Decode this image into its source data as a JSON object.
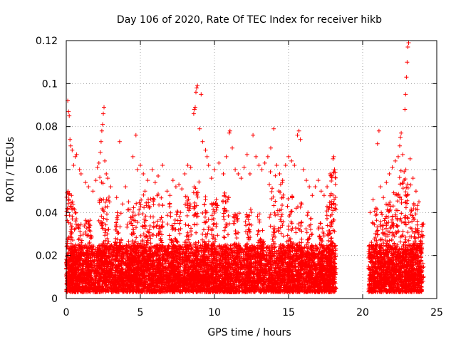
{
  "chart_data": {
    "type": "scatter",
    "title": "Day 106 of 2020, Rate Of TEC Index for receiver hikb",
    "xlabel": "GPS time / hours",
    "ylabel": "ROTI / TECUs",
    "xlim": [
      0,
      25
    ],
    "ylim": [
      0,
      0.12
    ],
    "x_ticks": [
      "0",
      "5",
      "10",
      "15",
      "20",
      "25"
    ],
    "y_ticks": [
      "0",
      "0.02",
      "0.04",
      "0.06",
      "0.08",
      "0.1",
      "0.12"
    ],
    "grid": true,
    "marker": "+",
    "color": "#ff0000",
    "data_gap_hours": [
      18.2,
      20.4
    ],
    "series": [
      {
        "points": [
          [
            0.1,
            0.092
          ],
          [
            0.15,
            0.087
          ],
          [
            0.2,
            0.085
          ],
          [
            0.25,
            0.074
          ],
          [
            0.3,
            0.071
          ],
          [
            0.4,
            0.069
          ],
          [
            0.5,
            0.062
          ],
          [
            0.6,
            0.066
          ],
          [
            0.7,
            0.067
          ],
          [
            0.9,
            0.06
          ],
          [
            1.0,
            0.058
          ],
          [
            1.3,
            0.054
          ],
          [
            1.5,
            0.052
          ],
          [
            1.8,
            0.05
          ],
          [
            2.0,
            0.055
          ],
          [
            2.1,
            0.061
          ],
          [
            2.2,
            0.063
          ],
          [
            2.3,
            0.068
          ],
          [
            2.35,
            0.073
          ],
          [
            2.4,
            0.078
          ],
          [
            2.45,
            0.081
          ],
          [
            2.5,
            0.086
          ],
          [
            2.55,
            0.089
          ],
          [
            2.6,
            0.064
          ],
          [
            2.7,
            0.058
          ],
          [
            2.8,
            0.056
          ],
          [
            3.0,
            0.052
          ],
          [
            3.4,
            0.047
          ],
          [
            3.6,
            0.073
          ],
          [
            3.8,
            0.044
          ],
          [
            4.0,
            0.052
          ],
          [
            4.2,
            0.045
          ],
          [
            4.5,
            0.066
          ],
          [
            4.7,
            0.076
          ],
          [
            4.8,
            0.06
          ],
          [
            5.0,
            0.062
          ],
          [
            5.2,
            0.058
          ],
          [
            5.5,
            0.055
          ],
          [
            5.8,
            0.06
          ],
          [
            6.0,
            0.054
          ],
          [
            6.2,
            0.057
          ],
          [
            6.5,
            0.062
          ],
          [
            6.8,
            0.05
          ],
          [
            7.0,
            0.048
          ],
          [
            7.2,
            0.055
          ],
          [
            7.4,
            0.052
          ],
          [
            7.6,
            0.053
          ],
          [
            7.8,
            0.051
          ],
          [
            8.0,
            0.058
          ],
          [
            8.2,
            0.062
          ],
          [
            8.4,
            0.061
          ],
          [
            8.6,
            0.086
          ],
          [
            8.65,
            0.088
          ],
          [
            8.7,
            0.089
          ],
          [
            8.75,
            0.096
          ],
          [
            8.8,
            0.098
          ],
          [
            8.85,
            0.099
          ],
          [
            9.0,
            0.079
          ],
          [
            9.1,
            0.095
          ],
          [
            9.2,
            0.073
          ],
          [
            9.4,
            0.069
          ],
          [
            9.5,
            0.066
          ],
          [
            9.6,
            0.062
          ],
          [
            9.8,
            0.056
          ],
          [
            10.0,
            0.06
          ],
          [
            10.3,
            0.063
          ],
          [
            10.6,
            0.058
          ],
          [
            10.8,
            0.066
          ],
          [
            11.0,
            0.077
          ],
          [
            11.05,
            0.078
          ],
          [
            11.2,
            0.07
          ],
          [
            11.4,
            0.06
          ],
          [
            11.6,
            0.058
          ],
          [
            11.8,
            0.056
          ],
          [
            12.0,
            0.061
          ],
          [
            12.2,
            0.067
          ],
          [
            12.4,
            0.058
          ],
          [
            12.6,
            0.076
          ],
          [
            12.8,
            0.066
          ],
          [
            13.0,
            0.062
          ],
          [
            13.2,
            0.06
          ],
          [
            13.4,
            0.063
          ],
          [
            13.6,
            0.066
          ],
          [
            13.8,
            0.07
          ],
          [
            14.0,
            0.079
          ],
          [
            14.2,
            0.062
          ],
          [
            14.4,
            0.058
          ],
          [
            14.6,
            0.055
          ],
          [
            14.8,
            0.062
          ],
          [
            15.0,
            0.066
          ],
          [
            15.2,
            0.064
          ],
          [
            15.4,
            0.062
          ],
          [
            15.6,
            0.076
          ],
          [
            15.7,
            0.078
          ],
          [
            15.8,
            0.074
          ],
          [
            16.0,
            0.06
          ],
          [
            16.2,
            0.055
          ],
          [
            16.4,
            0.052
          ],
          [
            16.6,
            0.048
          ],
          [
            16.8,
            0.052
          ],
          [
            17.0,
            0.055
          ],
          [
            17.2,
            0.05
          ],
          [
            17.4,
            0.048
          ],
          [
            17.6,
            0.052
          ],
          [
            17.8,
            0.058
          ],
          [
            18.0,
            0.065
          ],
          [
            18.05,
            0.066
          ],
          [
            18.1,
            0.06
          ],
          [
            20.5,
            0.04
          ],
          [
            20.7,
            0.046
          ],
          [
            20.9,
            0.042
          ],
          [
            21.0,
            0.072
          ],
          [
            21.1,
            0.078
          ],
          [
            21.2,
            0.052
          ],
          [
            21.4,
            0.047
          ],
          [
            21.6,
            0.054
          ],
          [
            21.8,
            0.058
          ],
          [
            22.0,
            0.061
          ],
          [
            22.2,
            0.064
          ],
          [
            22.4,
            0.066
          ],
          [
            22.5,
            0.071
          ],
          [
            22.55,
            0.075
          ],
          [
            22.6,
            0.077
          ],
          [
            22.7,
            0.067
          ],
          [
            22.8,
            0.059
          ],
          [
            22.85,
            0.088
          ],
          [
            22.9,
            0.095
          ],
          [
            22.95,
            0.103
          ],
          [
            23.0,
            0.11
          ],
          [
            23.05,
            0.117
          ],
          [
            23.1,
            0.119
          ],
          [
            23.2,
            0.065
          ],
          [
            23.4,
            0.056
          ],
          [
            23.6,
            0.05
          ],
          [
            23.8,
            0.045
          ]
        ]
      }
    ],
    "dense_band": {
      "segments": [
        [
          0,
          18.2
        ],
        [
          20.4,
          24
        ]
      ],
      "base_range": [
        0.003,
        0.025
      ],
      "bursts": [
        [
          0.2,
          0.05
        ],
        [
          0.5,
          0.045
        ],
        [
          1.0,
          0.035
        ],
        [
          1.5,
          0.038
        ],
        [
          2.4,
          0.06
        ],
        [
          2.7,
          0.05
        ],
        [
          3.5,
          0.04
        ],
        [
          4.3,
          0.042
        ],
        [
          4.7,
          0.045
        ],
        [
          5.2,
          0.05
        ],
        [
          5.7,
          0.048
        ],
        [
          6.3,
          0.05
        ],
        [
          7.0,
          0.045
        ],
        [
          7.5,
          0.042
        ],
        [
          8.2,
          0.05
        ],
        [
          8.8,
          0.055
        ],
        [
          9.4,
          0.05
        ],
        [
          10.0,
          0.048
        ],
        [
          10.8,
          0.05
        ],
        [
          11.5,
          0.04
        ],
        [
          12.3,
          0.042
        ],
        [
          13.1,
          0.04
        ],
        [
          13.9,
          0.06
        ],
        [
          14.5,
          0.055
        ],
        [
          15.1,
          0.05
        ],
        [
          15.7,
          0.045
        ],
        [
          16.4,
          0.04
        ],
        [
          17.2,
          0.038
        ],
        [
          17.8,
          0.045
        ],
        [
          18.0,
          0.06
        ],
        [
          20.8,
          0.042
        ],
        [
          21.4,
          0.04
        ],
        [
          21.8,
          0.045
        ],
        [
          22.2,
          0.05
        ],
        [
          22.7,
          0.06
        ],
        [
          23.1,
          0.058
        ],
        [
          23.5,
          0.045
        ],
        [
          23.9,
          0.035
        ]
      ]
    }
  }
}
